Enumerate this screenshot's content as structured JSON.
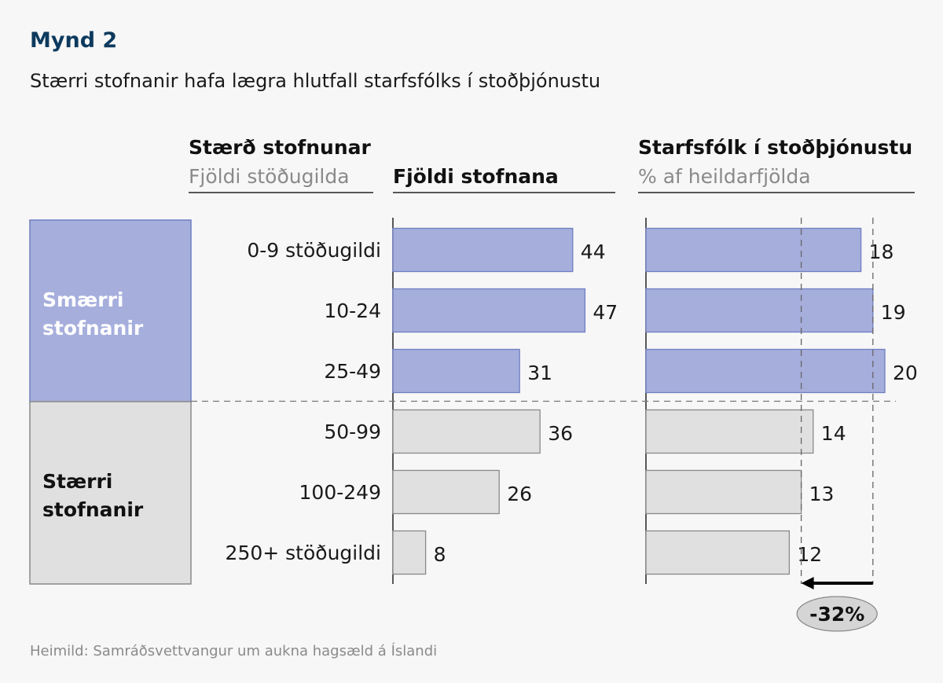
{
  "title": "Mynd 2",
  "subtitle": "Stærri stofnanir hafa lægra hlutfall starfsfólks í stoðþjónustu",
  "source": "Heimild: Samráðsvettvangur um aukna hagsæld á Íslandi",
  "colors": {
    "small": "#a6aedc",
    "small_stroke": "#6f7fc2",
    "large": "#e0e0e0",
    "large_stroke": "#8a8a8a",
    "title": "#0d3a5e"
  },
  "headers": {
    "size": {
      "title": "Stærð stofnunar",
      "subtitle": "Fjöldi stöðugilda"
    },
    "count": {
      "title": "Fjöldi stofnana"
    },
    "support": {
      "title": "Starfsfólk í stoðþjónustu",
      "subtitle": "% af heildarfjölda"
    }
  },
  "groups": [
    {
      "label_lines": [
        "Smærri",
        "stofnanir"
      ],
      "color_key": "small",
      "rows": [
        0,
        1,
        2
      ]
    },
    {
      "label_lines": [
        "Stærri",
        "stofnanir"
      ],
      "color_key": "large",
      "rows": [
        3,
        4,
        5
      ]
    }
  ],
  "chart_data": [
    {
      "type": "bar",
      "orientation": "horizontal",
      "title": "Fjöldi stofnana",
      "categories": [
        "0-9 stöðugildi",
        "10-24",
        "25-49",
        "50-99",
        "100-249",
        "250+ stöðugildi"
      ],
      "values": [
        44,
        47,
        31,
        36,
        26,
        8
      ],
      "xlim": [
        0,
        50
      ]
    },
    {
      "type": "bar",
      "orientation": "horizontal",
      "title": "Starfsfólk í stoðþjónustu",
      "subtitle": "% af heildarfjölda",
      "categories": [
        "0-9 stöðugildi",
        "10-24",
        "25-49",
        "50-99",
        "100-249",
        "250+ stöðugildi"
      ],
      "values": [
        18,
        19,
        20,
        14,
        13,
        12
      ],
      "xlim": [
        0,
        20
      ],
      "reference_lines": [
        19,
        13
      ],
      "annotation": {
        "text": "-32%",
        "from": 19,
        "to": 13
      }
    }
  ]
}
